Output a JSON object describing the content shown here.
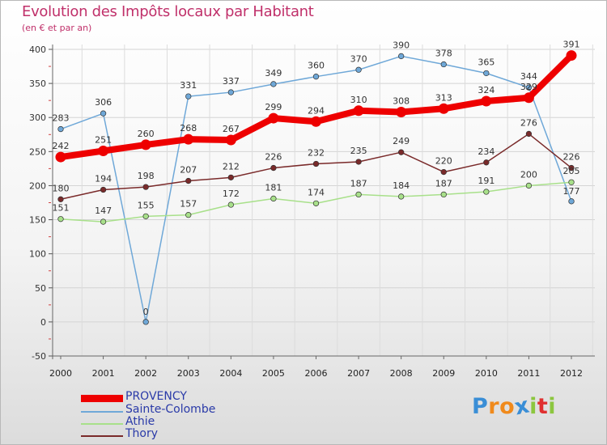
{
  "chart_data": {
    "type": "line",
    "title": "Evolution des Impôts locaux par Habitant",
    "subtitle": "(en € et par an)",
    "xlabel": "",
    "ylabel": "",
    "ylim": [
      -50,
      400
    ],
    "yticks": [
      -50,
      0,
      50,
      100,
      150,
      200,
      250,
      300,
      350,
      400
    ],
    "ytick_labels": [
      "-50",
      "0",
      "50",
      "100",
      "150",
      "200",
      "250",
      "300",
      "350",
      "400"
    ],
    "categories": [
      "2000",
      "2001",
      "2002",
      "2003",
      "2004",
      "2005",
      "2006",
      "2007",
      "2008",
      "2009",
      "2010",
      "2011",
      "2012"
    ],
    "grid": true,
    "legend_position": "bottom-left",
    "series": [
      {
        "name": "PROVENCY",
        "color": "#ee0000",
        "values": [
          242,
          251,
          260,
          268,
          267,
          299,
          294,
          310,
          308,
          313,
          324,
          329,
          391
        ],
        "labels": [
          "242",
          "251",
          "260",
          "268",
          "267",
          "299",
          "294",
          "310",
          "308",
          "313",
          "324",
          "329",
          "391"
        ]
      },
      {
        "name": "Sainte-Colombe",
        "color": "#6fa8d8",
        "values": [
          283,
          306,
          0,
          331,
          337,
          349,
          360,
          370,
          390,
          378,
          365,
          344,
          177
        ],
        "labels": [
          "283",
          "306",
          "0",
          "331",
          "337",
          "349",
          "360",
          "370",
          "390",
          "378",
          "365",
          "344",
          "177"
        ]
      },
      {
        "name": "Athie",
        "color": "#a8e08a",
        "values": [
          151,
          147,
          155,
          157,
          172,
          181,
          174,
          187,
          184,
          187,
          191,
          200,
          205
        ],
        "labels": [
          "151",
          "147",
          "155",
          "157",
          "172",
          "181",
          "174",
          "187",
          "184",
          "187",
          "191",
          "200",
          "205"
        ]
      },
      {
        "name": "Thory",
        "color": "#7a2a2a",
        "values": [
          180,
          194,
          198,
          207,
          212,
          226,
          232,
          235,
          249,
          220,
          234,
          276,
          226
        ],
        "labels": [
          "180",
          "194",
          "198",
          "207",
          "212",
          "226",
          "232",
          "235",
          "249",
          "220",
          "234",
          "276",
          "226"
        ]
      }
    ]
  },
  "brand": {
    "letters": [
      "P",
      "r",
      "o",
      "x",
      "i",
      "t",
      "i"
    ],
    "colors": [
      "#3a8ed6",
      "#f08a1c",
      "#f08a1c",
      "#3a8ed6",
      "#8cc63f",
      "#e03030",
      "#8cc63f"
    ]
  }
}
